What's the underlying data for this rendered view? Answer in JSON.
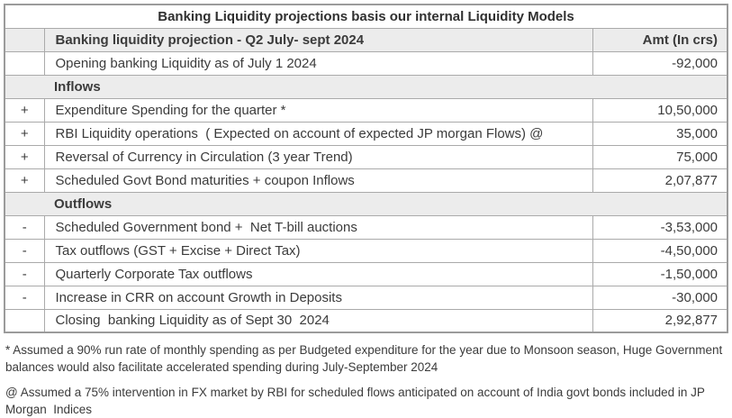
{
  "title": "Banking Liquidity projections basis our internal Liquidity Models",
  "table": {
    "header": {
      "sign": "",
      "label": "Banking liquidity projection - Q2 July- sept 2024",
      "amount": "Amt (In crs)"
    },
    "rows": [
      {
        "type": "data",
        "sign": "",
        "label": "Opening banking Liquidity as of July 1 2024",
        "amount": "-92,000"
      },
      {
        "type": "section",
        "label": "Inflows"
      },
      {
        "type": "data",
        "sign": "+",
        "label": "Expenditure Spending for the quarter *",
        "amount": "10,50,000"
      },
      {
        "type": "data",
        "sign": "+",
        "label": "RBI Liquidity operations  ( Expected on account of expected JP morgan Flows) @",
        "amount": "35,000"
      },
      {
        "type": "data",
        "sign": "+",
        "label": "Reversal of Currency in Circulation (3 year Trend)",
        "amount": "75,000"
      },
      {
        "type": "data",
        "sign": "+",
        "label": "Scheduled Govt Bond maturities + coupon Inflows",
        "amount": "2,07,877"
      },
      {
        "type": "section",
        "label": "Outflows"
      },
      {
        "type": "data",
        "sign": "-",
        "label": "Scheduled Government bond +  Net T-bill auctions",
        "amount": "-3,53,000"
      },
      {
        "type": "data",
        "sign": "-",
        "label": "Tax outflows (GST + Excise + Direct Tax)",
        "amount": "-4,50,000"
      },
      {
        "type": "data",
        "sign": "-",
        "label": "Quarterly Corporate Tax outflows",
        "amount": "-1,50,000"
      },
      {
        "type": "data",
        "sign": "-",
        "label": "Increase in CRR on account Growth in Deposits",
        "amount": "-30,000"
      },
      {
        "type": "data",
        "sign": "",
        "label": "Closing  banking Liquidity as of Sept 30  2024",
        "amount": "2,92,877"
      }
    ]
  },
  "footnotes": [
    "* Assumed a 90% run rate of monthly spending as per Budgeted expenditure for the year due to Monsoon season, Huge Government balances would also facilitate accelerated spending during July-September 2024",
    "@ Assumed a 75% intervention in FX market by RBI for scheduled flows anticipated on account of India govt bonds included in JP Morgan  Indices"
  ],
  "colors": {
    "section_fill": "#ececec",
    "border": "#a6a6a6",
    "text": "#3b3b3b",
    "background": "#ffffff"
  }
}
